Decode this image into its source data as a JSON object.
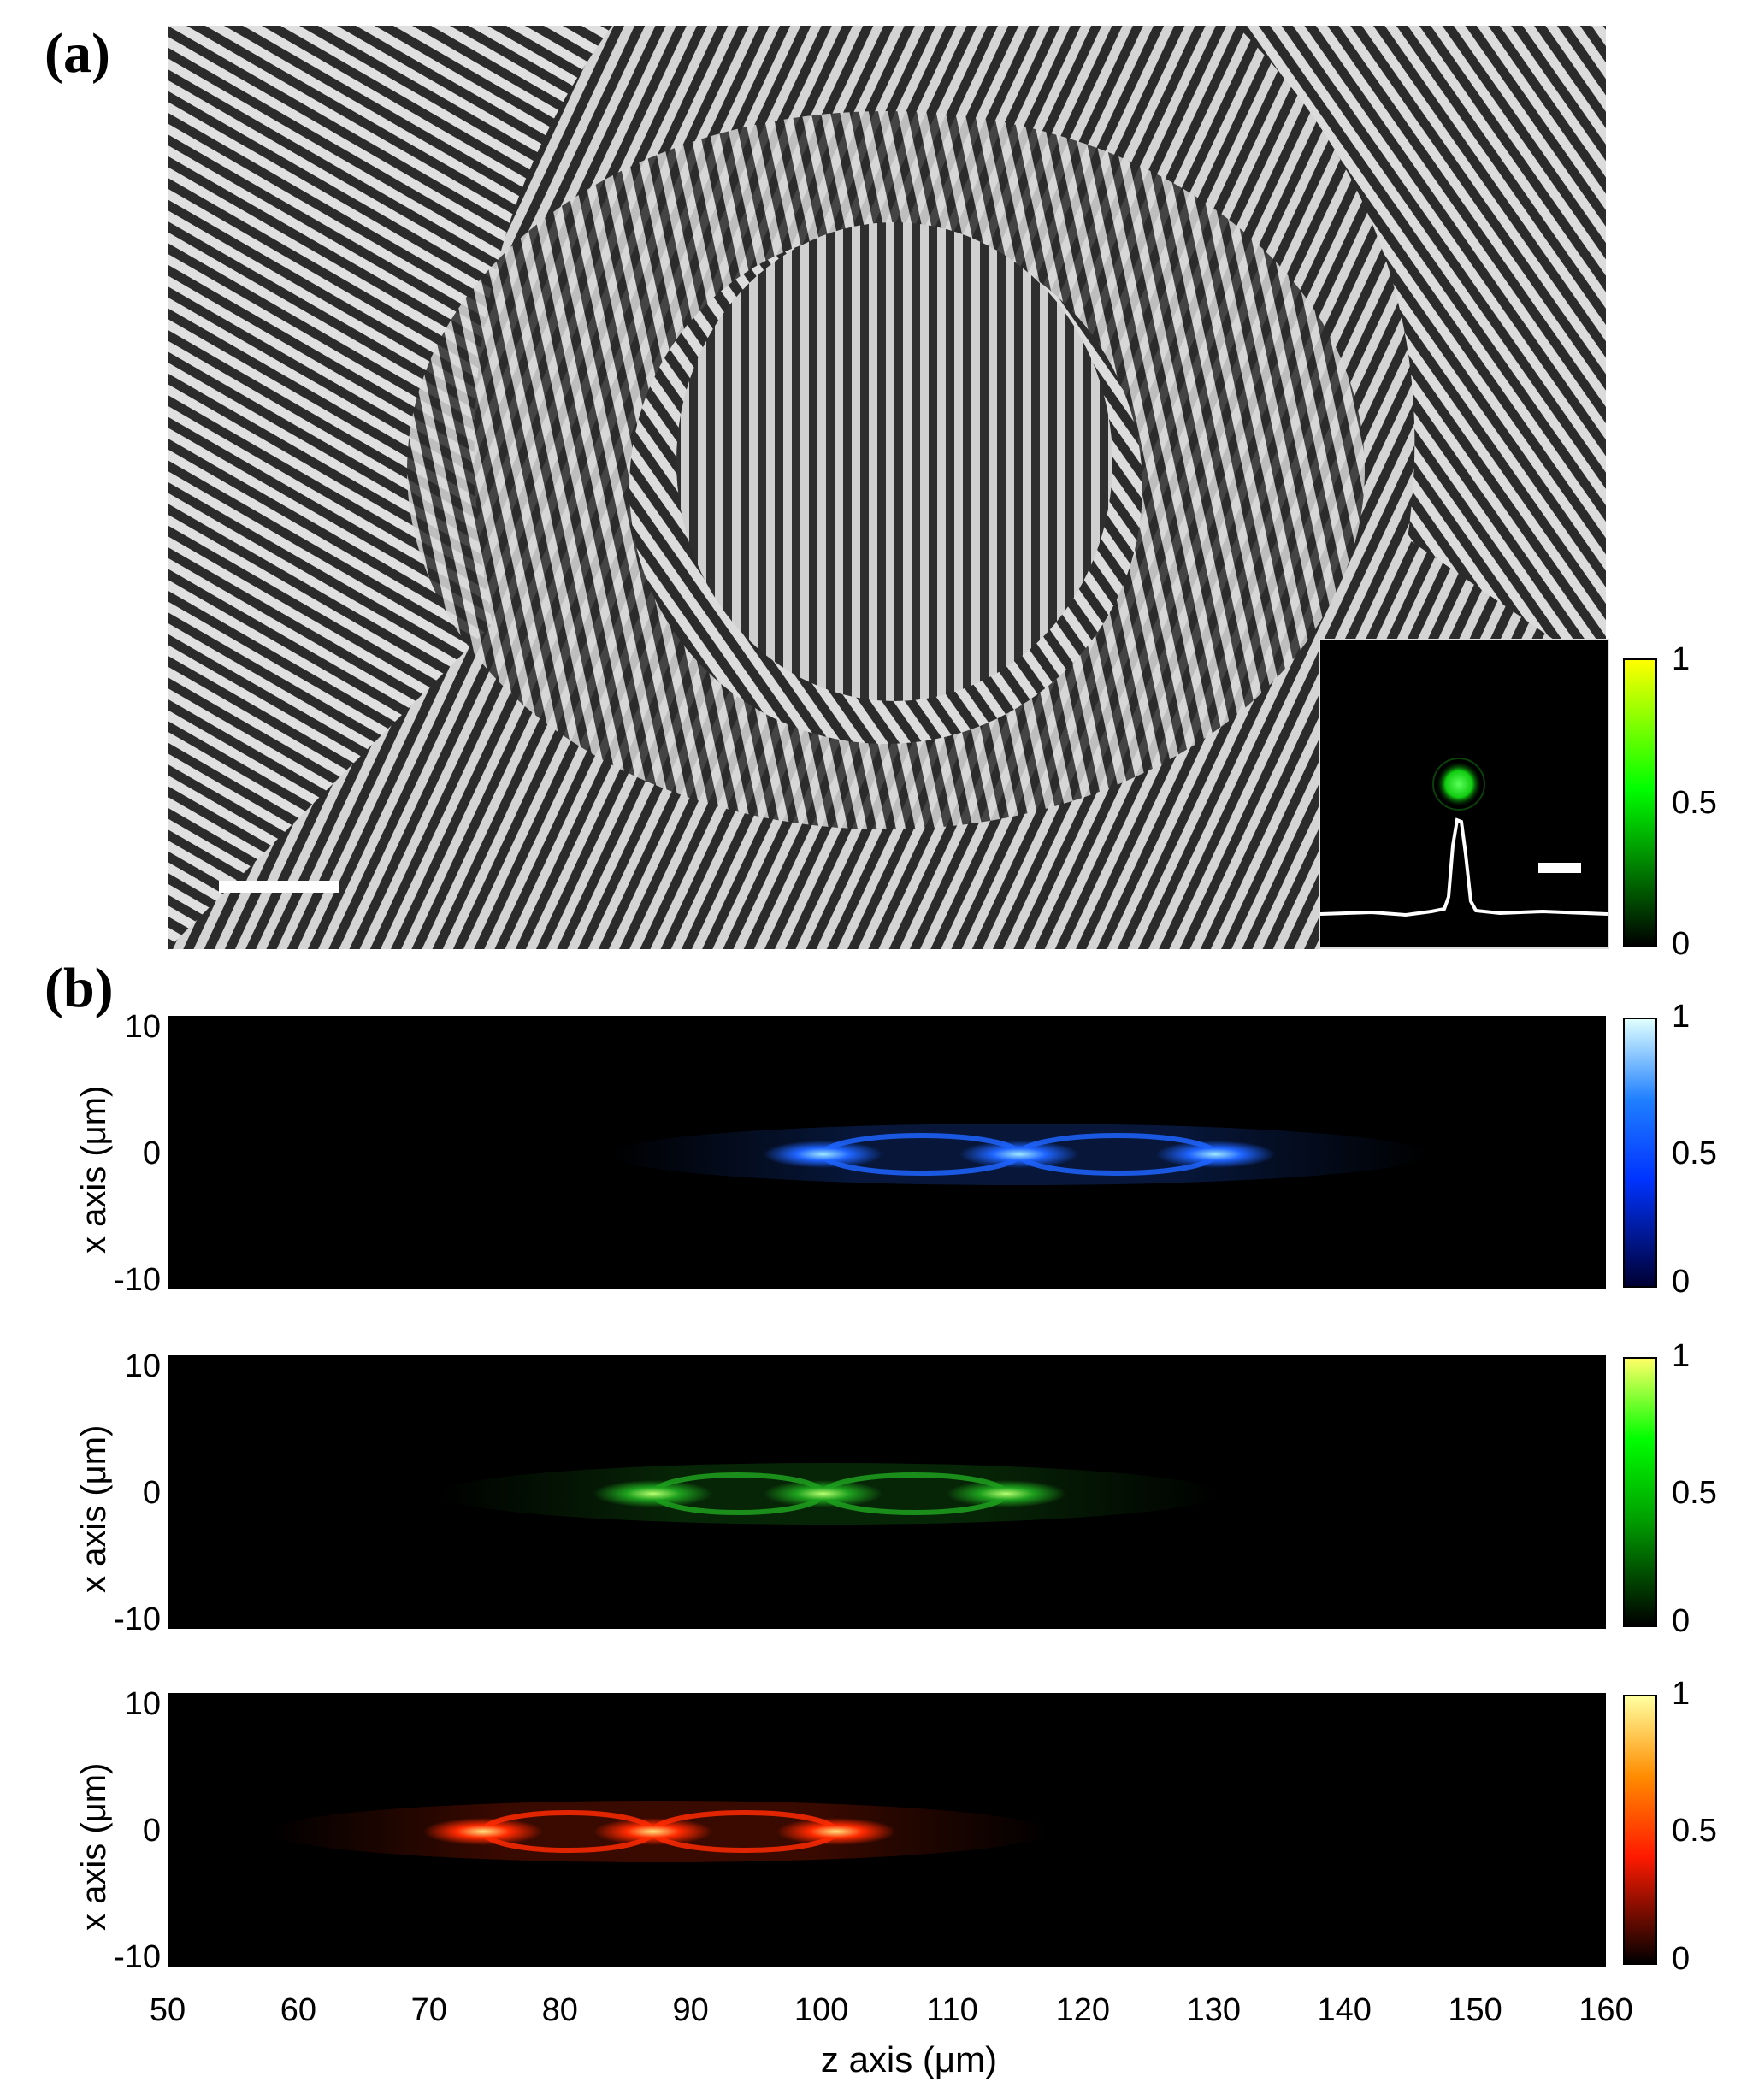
{
  "panel_a": {
    "label": "(a)",
    "colorbar": {
      "ticks": [
        "1",
        "0.5",
        "0"
      ],
      "colormap": [
        "#000000",
        "#00ff00",
        "#ffff00"
      ]
    },
    "inset": {
      "spot_color": "#22ee22",
      "profile_color": "#ffffff"
    }
  },
  "panel_b": {
    "label": "(b)",
    "y_ticks": [
      "10",
      "0",
      "-10"
    ],
    "y_label": "x axis (μm)",
    "x_label": "z axis (μm)",
    "x_ticks": [
      "50",
      "60",
      "70",
      "80",
      "90",
      "100",
      "110",
      "120",
      "130",
      "140",
      "150",
      "160"
    ],
    "plots": [
      {
        "name": "blue",
        "colorbar_ticks": [
          "1",
          "0.5",
          "0"
        ],
        "colors": [
          "#000033",
          "#0033ff",
          "#2080ff",
          "#e0ffff"
        ],
        "foci": [
          100,
          115,
          130
        ],
        "glow": "#1e64ff",
        "core": "#9fe8ff"
      },
      {
        "name": "green",
        "colorbar_ticks": [
          "1",
          "0.5",
          "0"
        ],
        "colors": [
          "#000000",
          "#00a000",
          "#00ff00",
          "#ffff66"
        ],
        "foci": [
          87,
          100,
          114
        ],
        "glow": "#1da01d",
        "core": "#b8ff70"
      },
      {
        "name": "red",
        "colorbar_ticks": [
          "1",
          "0.5",
          "0"
        ],
        "colors": [
          "#000000",
          "#ff1a00",
          "#ff8c00",
          "#ffffa0"
        ],
        "foci": [
          74,
          87,
          101
        ],
        "glow": "#ff2a00",
        "core": "#ffe680"
      }
    ]
  },
  "chart_data": {
    "type": "heatmap",
    "xlabel": "z axis (μm)",
    "ylabel": "x axis (μm)",
    "xlim": [
      50,
      160
    ],
    "ylim": [
      -10,
      10
    ],
    "colorbar_range": [
      0,
      1
    ],
    "series": [
      {
        "values": [
          100,
          115,
          130
        ]
      },
      {
        "values": [
          87,
          100,
          114
        ]
      },
      {
        "values": [
          74,
          87,
          101
        ]
      }
    ]
  }
}
